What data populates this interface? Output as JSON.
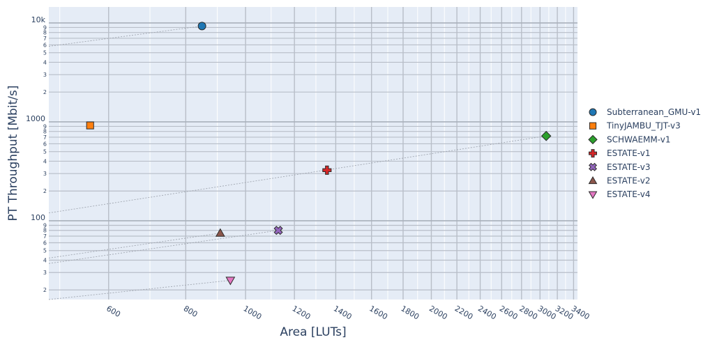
{
  "chart_data": {
    "type": "scatter",
    "xlabel": "Area [LUTs]",
    "ylabel": "PT Throughput [Mbit/s]",
    "x_scale": "log",
    "y_scale": "log",
    "xlim": [
      480,
      3450
    ],
    "ylim": [
      16,
      14500
    ],
    "grid": true,
    "legend_position": "right",
    "x_ticks": [
      "600",
      "800",
      "1000",
      "1200",
      "1400",
      "1600",
      "1800",
      "2000",
      "2200",
      "2400",
      "2600",
      "2800",
      "3000",
      "3200",
      "3400"
    ],
    "y_major_ticks": [
      "100",
      "1000",
      "10k"
    ],
    "y_minor_ticks": [
      "2",
      "3",
      "4",
      "5",
      "6",
      "7",
      "8",
      "9"
    ],
    "series": [
      {
        "name": "Subterranean_GMU-v1",
        "x": 850,
        "y": 9300,
        "color": "#1f77b4",
        "marker": "circle"
      },
      {
        "name": "TinyJAMBU_TJT-v3",
        "x": 560,
        "y": 920,
        "color": "#ff7f0e",
        "marker": "square"
      },
      {
        "name": "SCHWAEMM-v1",
        "x": 3070,
        "y": 720,
        "color": "#2ca02c",
        "marker": "diamond"
      },
      {
        "name": "ESTATE-v1",
        "x": 1355,
        "y": 325,
        "color": "#d62728",
        "marker": "cross"
      },
      {
        "name": "ESTATE-v3",
        "x": 1130,
        "y": 80,
        "color": "#9467bd",
        "marker": "x"
      },
      {
        "name": "ESTATE-v2",
        "x": 910,
        "y": 75,
        "color": "#8c564b",
        "marker": "triangle-up"
      },
      {
        "name": "ESTATE-v4",
        "x": 945,
        "y": 25,
        "color": "#e377c2",
        "marker": "triangle-down"
      }
    ],
    "trend_lines": [
      {
        "x": [
          480,
          850
        ],
        "y": [
          5800,
          9300
        ]
      },
      {
        "x": [
          480,
          3070
        ],
        "y": [
          120,
          720
        ]
      },
      {
        "x": [
          480,
          1130
        ],
        "y": [
          37,
          80
        ]
      },
      {
        "x": [
          480,
          910
        ],
        "y": [
          42,
          75
        ]
      },
      {
        "x": [
          480,
          945
        ],
        "y": [
          16,
          25
        ]
      }
    ]
  }
}
